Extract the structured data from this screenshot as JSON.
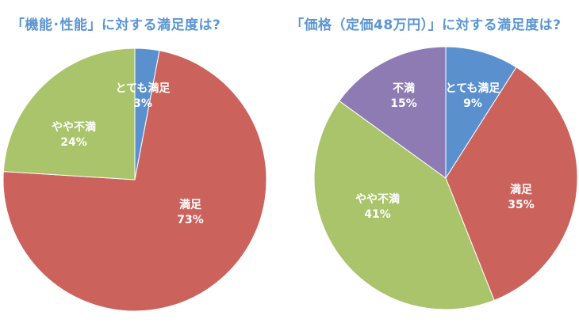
{
  "chart_data": [
    {
      "type": "pie",
      "title": "「機能･性能」に対する満足度は?",
      "start_angle": "12 o'clock",
      "direction": "clockwise",
      "slices": [
        {
          "label": "とても満足",
          "value": 3,
          "display": "3%",
          "color": "#5b90cf"
        },
        {
          "label": "満足",
          "value": 73,
          "display": "73%",
          "color": "#cb625c"
        },
        {
          "label": "やや不満",
          "value": 24,
          "display": "24%",
          "color": "#a9c46a"
        }
      ]
    },
    {
      "type": "pie",
      "title": "「価格（定価48万円）」に対する満足度は?",
      "start_angle": "12 o'clock",
      "direction": "clockwise",
      "slices": [
        {
          "label": "とても満足",
          "value": 9,
          "display": "9%",
          "color": "#5b90cf"
        },
        {
          "label": "満足",
          "value": 35,
          "display": "35%",
          "color": "#cb625c"
        },
        {
          "label": "やや不満",
          "value": 41,
          "display": "41%",
          "color": "#a9c46a"
        },
        {
          "label": "不満",
          "value": 15,
          "display": "15%",
          "color": "#8e7bb4"
        }
      ]
    }
  ]
}
